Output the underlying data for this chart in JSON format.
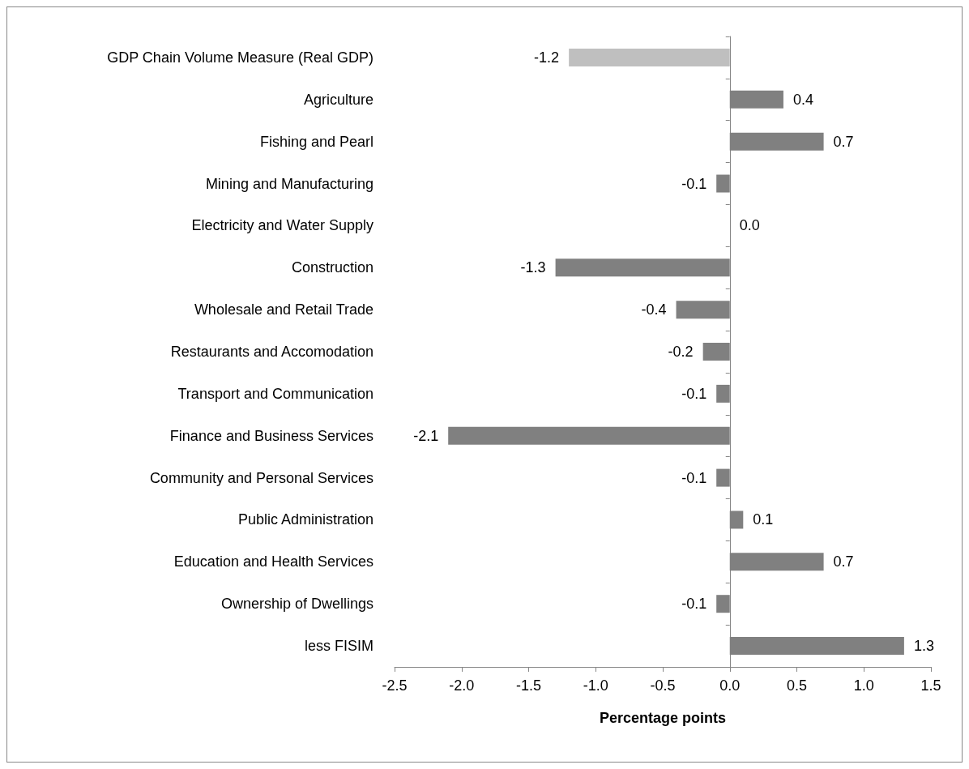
{
  "chart_data": {
    "type": "bar",
    "orientation": "horizontal",
    "xlabel": "Percentage points",
    "categories": [
      "GDP Chain Volume Measure (Real GDP)",
      "Agriculture",
      "Fishing and Pearl",
      "Mining and Manufacturing",
      "Electricity and Water Supply",
      "Construction",
      "Wholesale and Retail Trade",
      "Restaurants and Accomodation",
      "Transport and Communication",
      "Finance and Business Services",
      "Community and Personal Services",
      "Public Administration",
      "Education and Health Services",
      "Ownership of Dwellings",
      "less FISIM"
    ],
    "values": [
      -1.2,
      0.4,
      0.7,
      -0.1,
      0.0,
      -1.3,
      -0.4,
      -0.2,
      -0.1,
      -2.1,
      -0.1,
      0.1,
      0.7,
      -0.1,
      1.3
    ],
    "value_labels": [
      "-1.2",
      "0.4",
      "0.7",
      "-0.1",
      "0.0",
      "-1.3",
      "-0.4",
      "-0.2",
      "-0.1",
      "-2.1",
      "-0.1",
      "0.1",
      "0.7",
      "-0.1",
      "1.3"
    ],
    "colors": [
      "#bfbfbf",
      "#808080",
      "#808080",
      "#808080",
      "#808080",
      "#808080",
      "#808080",
      "#808080",
      "#808080",
      "#808080",
      "#808080",
      "#808080",
      "#808080",
      "#808080",
      "#808080"
    ],
    "xlim": [
      -2.5,
      1.5
    ],
    "xticks": [
      {
        "value": -2.5,
        "label": "-2.5"
      },
      {
        "value": -2,
        "label": "-2.0"
      },
      {
        "value": -1.5,
        "label": "-1.5"
      },
      {
        "value": -1,
        "label": "-1.0"
      },
      {
        "value": -0.5,
        "label": "-0.5"
      },
      {
        "value": 0,
        "label": "0.0"
      },
      {
        "value": 0.5,
        "label": "0.5"
      },
      {
        "value": 1,
        "label": "1.0"
      },
      {
        "value": 1.5,
        "label": "1.5"
      }
    ]
  }
}
